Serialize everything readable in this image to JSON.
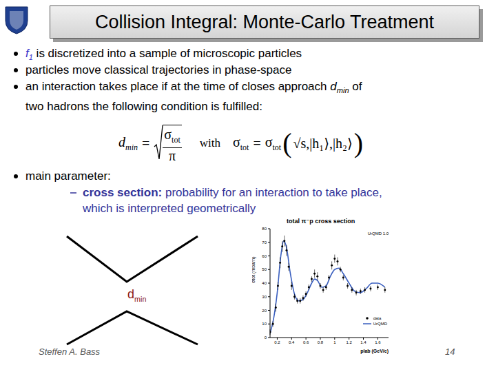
{
  "header": {
    "title": "Collision Integral: Monte-Carlo Treatment"
  },
  "bullets": [
    {
      "lines": [
        [
          {
            "text": "f",
            "sub": "1",
            "italic": true,
            "color": "#3333cc"
          },
          {
            "text": " is discretized into a sample of microscopic particles"
          }
        ]
      ]
    },
    {
      "lines": [
        [
          {
            "text": "particles move classical trajectories in phase-space"
          }
        ]
      ]
    },
    {
      "lines": [
        [
          {
            "text": "an interaction takes place if at the time of closes approach "
          },
          {
            "text": "d",
            "sub": "min",
            "italic": true
          },
          {
            "text": " of"
          }
        ],
        [
          {
            "text": "two hadrons the following condition is fulfilled:"
          }
        ]
      ]
    },
    {
      "lines": [
        [
          {
            "text": "main parameter:"
          }
        ]
      ],
      "sub_bullets": [
        {
          "lines": [
            [
              {
                "text": "cross section:",
                "bold": true
              },
              {
                "text": " probability for an interaction to take place,"
              }
            ],
            [
              {
                "text": "which is interpreted geometrically"
              }
            ]
          ]
        }
      ]
    }
  ],
  "formula": {
    "lhs": {
      "base": "d",
      "sub": "min"
    },
    "eq": "=",
    "num": {
      "base": "σ",
      "sub": "tot"
    },
    "den": "π",
    "with": "with",
    "rhs_lhs": {
      "base": "σ",
      "sub": "tot"
    },
    "rhs_fn": {
      "base": "σ",
      "sub": "tot"
    },
    "open": "(",
    "close": ")",
    "separator": ",",
    "args": [
      "√s",
      "|h₁⟩",
      "|h₂⟩"
    ]
  },
  "diagram": {
    "label": {
      "base": "d",
      "sub": "min"
    }
  },
  "footer": {
    "author": "Steffen A. Bass",
    "page": "14"
  },
  "chart_data": {
    "type": "line",
    "title": "total π⁻p cross section",
    "annotation": "UrQMD 1.0",
    "x_label": "plab (GeV/c)",
    "y_label": "σtot (mbarn)",
    "xlim": [
      0.1,
      1.75
    ],
    "xticks": [
      0.2,
      0.4,
      0.6,
      0.8,
      1,
      1.2,
      1.4,
      1.6
    ],
    "ylim": [
      0,
      80
    ],
    "yticks": [
      0,
      10,
      20,
      30,
      40,
      50,
      60,
      70,
      80
    ],
    "legend": "lower right",
    "series": [
      {
        "name": "data",
        "type": "scatter",
        "marker": "circle",
        "color": "#000000",
        "x": [
          0.1,
          0.14,
          0.18,
          0.21,
          0.24,
          0.27,
          0.3,
          0.33,
          0.36,
          0.4,
          0.44,
          0.48,
          0.52,
          0.56,
          0.6,
          0.64,
          0.68,
          0.72,
          0.76,
          0.8,
          0.84,
          0.88,
          0.92,
          0.96,
          1.0,
          1.04,
          1.08,
          1.12,
          1.18,
          1.24,
          1.3,
          1.36,
          1.42,
          1.5,
          1.6,
          1.7
        ],
        "values": [
          4,
          10,
          22,
          38,
          55,
          67,
          71,
          64,
          52,
          38,
          30,
          27,
          27,
          29,
          32,
          37,
          43,
          47,
          45,
          38,
          35,
          37,
          44,
          53,
          58,
          56,
          50,
          44,
          38,
          35,
          33,
          34,
          35,
          36,
          37,
          35
        ],
        "errors": [
          2,
          2,
          3,
          3,
          4,
          4,
          4,
          4,
          3,
          3,
          2,
          2,
          2,
          2,
          2,
          2,
          2,
          3,
          3,
          2,
          2,
          2,
          2,
          3,
          3,
          3,
          2,
          2,
          2,
          2,
          2,
          2,
          2,
          2,
          2,
          2
        ]
      },
      {
        "name": "UrQMD",
        "type": "line",
        "line_style": "solid",
        "color": "#3a5fbf",
        "x": [
          0.1,
          0.15,
          0.2,
          0.25,
          0.29,
          0.33,
          0.38,
          0.44,
          0.5,
          0.56,
          0.62,
          0.68,
          0.72,
          0.76,
          0.82,
          0.88,
          0.94,
          1.0,
          1.06,
          1.12,
          1.2,
          1.28,
          1.36,
          1.44,
          1.52,
          1.6,
          1.7
        ],
        "values": [
          3,
          14,
          33,
          60,
          71,
          66,
          48,
          32,
          27,
          28,
          33,
          40,
          43,
          42,
          37,
          38,
          45,
          50,
          51,
          47,
          40,
          34,
          33,
          36,
          40,
          40,
          37
        ]
      }
    ]
  }
}
